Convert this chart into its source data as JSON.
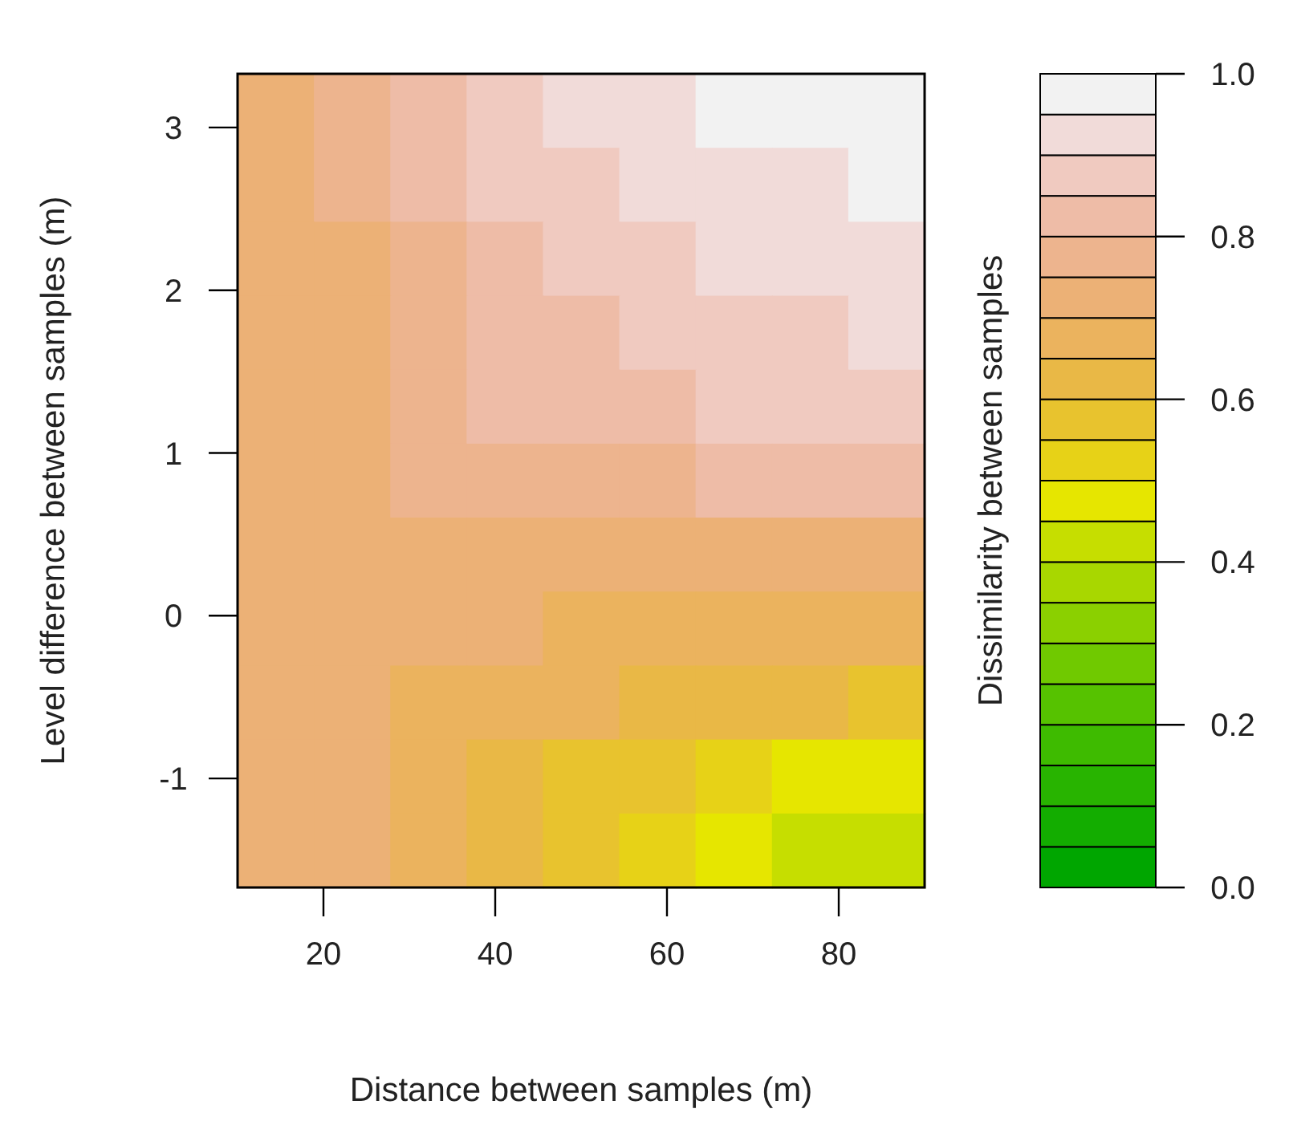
{
  "chart_data": {
    "type": "heatmap",
    "xlabel": "Distance between samples (m)",
    "ylabel": "Level difference between samples (m)",
    "clabel": "Dissimilarity between samples",
    "xlim": [
      10,
      90
    ],
    "xticks": [
      20,
      40,
      60,
      80
    ],
    "ylim": [
      -1.67,
      3.33
    ],
    "yticks": [
      -1,
      0,
      1,
      2,
      3
    ],
    "clim": [
      0,
      1
    ],
    "cticks": [
      {
        "value": 0,
        "label": "0.0"
      },
      {
        "value": 0.2,
        "label": "0.2"
      },
      {
        "value": 0.4,
        "label": "0.4"
      },
      {
        "value": 0.6,
        "label": "0.6"
      },
      {
        "value": 0.8,
        "label": "0.8"
      },
      {
        "value": 1,
        "label": "1.0"
      }
    ],
    "colors": [
      "#00a600",
      "#13ad00",
      "#28b400",
      "#3ebb00",
      "#56c200",
      "#70c900",
      "#8bd000",
      "#a8d700",
      "#c6de00",
      "#e6e600",
      "#e7d217",
      "#e8c32e",
      "#e9b846",
      "#ebb35e",
      "#ecb176",
      "#edb48e",
      "#eebca7",
      "#f0cac0",
      "#f1dbd9",
      "#f2f2f2"
    ],
    "cells": [
      [
        0.72,
        0.76,
        0.82,
        0.865,
        0.9,
        0.93,
        0.952,
        0.97,
        0.98
      ],
      [
        0.72,
        0.75,
        0.8,
        0.85,
        0.885,
        0.91,
        0.93,
        0.945,
        0.955
      ],
      [
        0.72,
        0.747,
        0.79,
        0.835,
        0.865,
        0.885,
        0.91,
        0.925,
        0.935
      ],
      [
        0.72,
        0.742,
        0.78,
        0.815,
        0.843,
        0.86,
        0.883,
        0.896,
        0.905
      ],
      [
        0.72,
        0.738,
        0.765,
        0.8,
        0.825,
        0.84,
        0.85,
        0.857,
        0.862
      ],
      [
        0.722,
        0.733,
        0.75,
        0.772,
        0.787,
        0.795,
        0.802,
        0.806,
        0.808
      ],
      [
        0.725,
        0.728,
        0.73,
        0.733,
        0.735,
        0.735,
        0.734,
        0.733,
        0.732
      ],
      [
        0.725,
        0.72,
        0.71,
        0.703,
        0.698,
        0.692,
        0.684,
        0.674,
        0.657
      ],
      [
        0.725,
        0.714,
        0.693,
        0.672,
        0.656,
        0.641,
        0.625,
        0.61,
        0.592
      ],
      [
        0.725,
        0.705,
        0.66,
        0.62,
        0.595,
        0.555,
        0.51,
        0.485,
        0.476
      ],
      [
        0.72,
        0.7,
        0.65,
        0.605,
        0.56,
        0.5,
        0.45,
        0.42,
        0.4
      ]
    ]
  }
}
